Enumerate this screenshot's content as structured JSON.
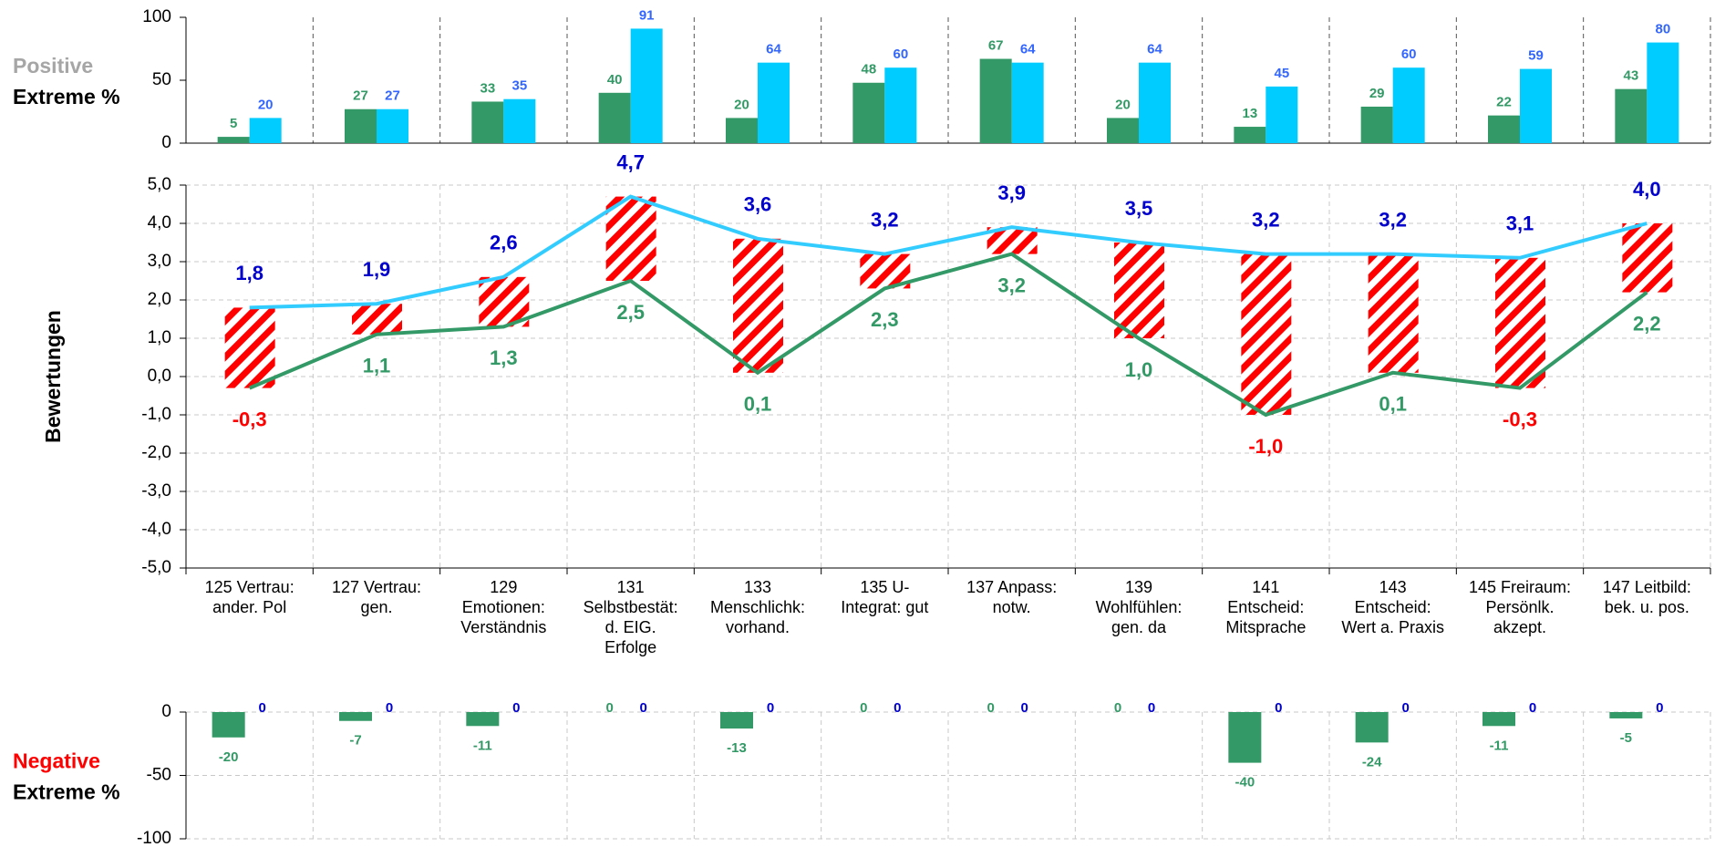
{
  "chart_data": [
    {
      "type": "bar",
      "ylabel": [
        "Positive",
        "Extreme %"
      ],
      "ylabel_colors": [
        "#a6a6a6",
        "#000000"
      ],
      "ylim": [
        0,
        100
      ],
      "yticks": [
        0,
        50,
        100
      ],
      "series": [
        {
          "color": "#339966",
          "label_color": "#339966",
          "values": [
            5,
            27,
            33,
            40,
            20,
            48,
            67,
            20,
            13,
            29,
            22,
            43
          ]
        },
        {
          "color": "#00ccff",
          "label_color": "#3366ff",
          "values": [
            20,
            27,
            35,
            91,
            64,
            60,
            64,
            64,
            45,
            60,
            59,
            80
          ]
        }
      ]
    },
    {
      "type": "line",
      "ylabel": "Bewertungen",
      "categories": [
        [
          "125 Vertrau:",
          "ander. Pol"
        ],
        [
          "127 Vertrau:",
          "gen."
        ],
        [
          "129",
          "Emotionen:",
          "Verständnis"
        ],
        [
          "131",
          "Selbstbestät:",
          "d. EIG.",
          "Erfolge"
        ],
        [
          "133",
          "Menschlichk:",
          "vorhand."
        ],
        [
          "135 U-",
          "Integrat: gut"
        ],
        [
          "137 Anpass:",
          "notw."
        ],
        [
          "139",
          "Wohlfühlen:",
          "gen. da"
        ],
        [
          "141",
          "Entscheid:",
          "Mitsprache"
        ],
        [
          "143",
          "Entscheid:",
          "Wert a. Praxis"
        ],
        [
          "145 Freiraum:",
          "Persönlk.",
          "akzept."
        ],
        [
          "147 Leitbild:",
          "bek. u. pos."
        ]
      ],
      "ylim": [
        -5,
        5
      ],
      "yticks": [
        {
          "value": -5,
          "label": "-5,0"
        },
        {
          "value": -4,
          "label": "-4,0"
        },
        {
          "value": -3,
          "label": "-3,0"
        },
        {
          "value": -2,
          "label": "-2,0"
        },
        {
          "value": -1,
          "label": "-1,0"
        },
        {
          "value": 0,
          "label": "0,0"
        },
        {
          "value": 1,
          "label": "1,0"
        },
        {
          "value": 2,
          "label": "2,0"
        },
        {
          "value": 3,
          "label": "3,0"
        },
        {
          "value": 4,
          "label": "4,0"
        },
        {
          "value": 5,
          "label": "5,0"
        }
      ],
      "grid": true,
      "series": [
        {
          "color": "#33ccff",
          "label_color": "#0000cc",
          "values": [
            1.8,
            1.9,
            2.6,
            4.7,
            3.6,
            3.2,
            3.9,
            3.5,
            3.2,
            3.2,
            3.1,
            4.0
          ],
          "value_labels": [
            "1,8",
            "1,9",
            "2,6",
            "4,7",
            "3,6",
            "3,2",
            "3,9",
            "3,5",
            "3,2",
            "3,2",
            "3,1",
            "4,0"
          ]
        },
        {
          "color": "#339966",
          "label_color": "#339966",
          "negative_label_color": "#ff0000",
          "values": [
            -0.3,
            1.1,
            1.3,
            2.5,
            0.1,
            2.3,
            3.2,
            1.0,
            -1.0,
            0.1,
            -0.3,
            2.2
          ],
          "value_labels": [
            "-0,3",
            "1,1",
            "1,3",
            "2,5",
            "0,1",
            "2,3",
            "3,2",
            "1,0",
            "-1,0",
            "0,1",
            "-0,3",
            "2,2"
          ]
        }
      ]
    },
    {
      "type": "bar",
      "ylabel": [
        "Negative",
        "Extreme %"
      ],
      "ylabel_colors": [
        "#ff0000",
        "#000000"
      ],
      "ylim": [
        -100,
        0
      ],
      "yticks": [
        -100,
        -50,
        0
      ],
      "series": [
        {
          "color": "#339966",
          "label_color": "#339966",
          "values": [
            -20,
            -7,
            -11,
            0,
            -13,
            0,
            0,
            0,
            -40,
            -24,
            -11,
            -5
          ]
        },
        {
          "color": "#0000cc",
          "label_color": "#0000cc",
          "values": [
            0,
            0,
            0,
            0,
            0,
            0,
            0,
            0,
            0,
            0,
            0,
            0
          ]
        }
      ]
    }
  ]
}
